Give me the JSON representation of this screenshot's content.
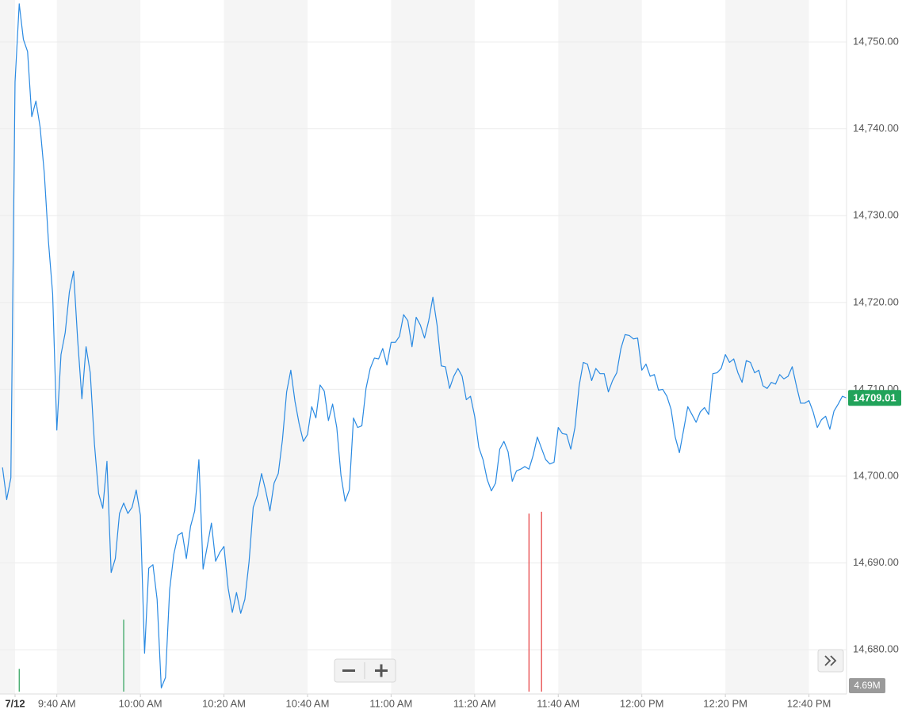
{
  "chart_data": {
    "type": "line",
    "color": "#2a8ae2",
    "grid": true,
    "xlim": [
      566.4,
      769
    ],
    "ylim": [
      14675.18,
      14754.84
    ],
    "xticks": [
      {
        "value": 570,
        "label": "7/12"
      },
      {
        "value": 580,
        "label": "9:40 AM"
      },
      {
        "value": 600,
        "label": "10:00 AM"
      },
      {
        "value": 620,
        "label": "10:20 AM"
      },
      {
        "value": 640,
        "label": "10:40 AM"
      },
      {
        "value": 660,
        "label": "11:00 AM"
      },
      {
        "value": 680,
        "label": "11:20 AM"
      },
      {
        "value": 700,
        "label": "11:40 AM"
      },
      {
        "value": 720,
        "label": "12:00 PM"
      },
      {
        "value": 740,
        "label": "12:20 PM"
      },
      {
        "value": 760,
        "label": "12:40 PM"
      }
    ],
    "yticks": [
      {
        "value": 14680,
        "label": "14,680.00"
      },
      {
        "value": 14690,
        "label": "14,690.00"
      },
      {
        "value": 14700,
        "label": "14,700.00"
      },
      {
        "value": 14710,
        "label": "14,710.00"
      },
      {
        "value": 14720,
        "label": "14,720.00"
      },
      {
        "value": 14730,
        "label": "14,730.00"
      },
      {
        "value": 14740,
        "label": "14,740.00"
      },
      {
        "value": 14750,
        "label": "14,750.00"
      }
    ],
    "last_price": 14709.01,
    "last_volume_label": "4.69M",
    "x": [
      567,
      568,
      569,
      570,
      571,
      572,
      573,
      574,
      575,
      576,
      577,
      578,
      579,
      580,
      581,
      582,
      583,
      584,
      585,
      586,
      587,
      588,
      589,
      590,
      591,
      592,
      593,
      594,
      595,
      596,
      597,
      598,
      599,
      600,
      601,
      602,
      603,
      604,
      605,
      606,
      607,
      608,
      609,
      610,
      611,
      612,
      613,
      614,
      615,
      616,
      617,
      618,
      619,
      620,
      621,
      622,
      623,
      624,
      625,
      626,
      627,
      628,
      629,
      630,
      631,
      632,
      633,
      634,
      635,
      636,
      637,
      638,
      639,
      640,
      641,
      642,
      643,
      644,
      645,
      646,
      647,
      648,
      649,
      650,
      651,
      652,
      653,
      654,
      655,
      656,
      657,
      658,
      659,
      660,
      661,
      662,
      663,
      664,
      665,
      666,
      667,
      668,
      669,
      670,
      671,
      672,
      673,
      674,
      675,
      676,
      677,
      678,
      679,
      680,
      681,
      682,
      683,
      684,
      685,
      686,
      687,
      688,
      689,
      690,
      691,
      692,
      693,
      694,
      695,
      696,
      697,
      698,
      699,
      700,
      701,
      702,
      703,
      704,
      705,
      706,
      707,
      708,
      709,
      710,
      711,
      712,
      713,
      714,
      715,
      716,
      717,
      718,
      719,
      720,
      721,
      722,
      723,
      724,
      725,
      726,
      727,
      728,
      729,
      730,
      731,
      732,
      733,
      734,
      735,
      736,
      737,
      738,
      739,
      740,
      741,
      742,
      743,
      744,
      745,
      746,
      747,
      748,
      749,
      750,
      751,
      752,
      753,
      754,
      755,
      756,
      757,
      758,
      759,
      760,
      761,
      762,
      763,
      764,
      765,
      766,
      767,
      768,
      769
    ],
    "values": [
      14701,
      14697.3,
      14699.8,
      14745.4,
      14754.4,
      14750.3,
      14748.9,
      14741.4,
      14743.2,
      14740.2,
      14734.9,
      14727,
      14721,
      14705.3,
      14714,
      14716.5,
      14721.2,
      14723.6,
      14715.6,
      14708.9,
      14714.9,
      14711.9,
      14703.7,
      14698,
      14696.3,
      14701.7,
      14688.9,
      14690.5,
      14695.7,
      14696.9,
      14695.7,
      14696.4,
      14698.4,
      14695.5,
      14679.6,
      14689.4,
      14689.8,
      14685.8,
      14675.6,
      14676.8,
      14686.9,
      14691,
      14693.2,
      14693.5,
      14690.5,
      14694.2,
      14696,
      14701.9,
      14689.3,
      14691.9,
      14694.6,
      14690.2,
      14691.2,
      14691.9,
      14687.1,
      14684.3,
      14686.6,
      14684.2,
      14685.8,
      14690.1,
      14696.4,
      14697.8,
      14700.3,
      14698.3,
      14696,
      14699.2,
      14700.3,
      14704.2,
      14709.7,
      14712.2,
      14708.6,
      14706,
      14704,
      14704.8,
      14708,
      14706.7,
      14710.5,
      14709.8,
      14706.4,
      14708.3,
      14705.6,
      14700.1,
      14697.1,
      14698.4,
      14706.7,
      14705.6,
      14705.8,
      14710.1,
      14712.4,
      14713.6,
      14713.5,
      14714.7,
      14712.8,
      14715.4,
      14715.4,
      14716.1,
      14718.6,
      14717.9,
      14714.9,
      14718.3,
      14717.4,
      14715.9,
      14717.9,
      14720.6,
      14717.4,
      14712.7,
      14712.6,
      14710.1,
      14711.5,
      14712.4,
      14711.5,
      14708.8,
      14709.2,
      14706.9,
      14703.3,
      14701.9,
      14699.6,
      14698.3,
      14699.2,
      14703.1,
      14704,
      14702.8,
      14699.4,
      14700.6,
      14700.8,
      14701.1,
      14700.8,
      14702.4,
      14704.5,
      14703.2,
      14701.9,
      14701.4,
      14701.6,
      14705.6,
      14704.9,
      14704.8,
      14703.1,
      14705.6,
      14710.4,
      14713.1,
      14712.9,
      14711,
      14712.4,
      14711.8,
      14711.8,
      14709.7,
      14711,
      14711.9,
      14714.7,
      14716.3,
      14716.2,
      14715.8,
      14715.9,
      14712.2,
      14712.9,
      14711.5,
      14711.7,
      14709.9,
      14710,
      14709.2,
      14707.7,
      14704.5,
      14702.7,
      14705.3,
      14708,
      14707.1,
      14706.2,
      14707.4,
      14707.9,
      14707.1,
      14711.8,
      14711.9,
      14712.4,
      14714,
      14713.1,
      14713.5,
      14711.9,
      14710.8,
      14713.3,
      14713.1,
      14711.9,
      14712.2,
      14710.4,
      14710.1,
      14710.8,
      14710.6,
      14711.7,
      14711.2,
      14711.5,
      14712.6,
      14710.4,
      14708.4,
      14708.4,
      14708.7,
      14707.4,
      14705.6,
      14706.5,
      14706.9,
      14705.4,
      14707.5,
      14708.3,
      14709.2,
      14709.01
    ],
    "volume": {
      "x": [
        571,
        596,
        693,
        696
      ],
      "values": [
        1200000,
        3800000,
        9400000,
        9500000
      ],
      "colors": [
        "#2ca05a",
        "#2ca05a",
        "#e5393a",
        "#e5393a"
      ],
      "vlim": [
        0,
        10000000
      ]
    }
  }
}
